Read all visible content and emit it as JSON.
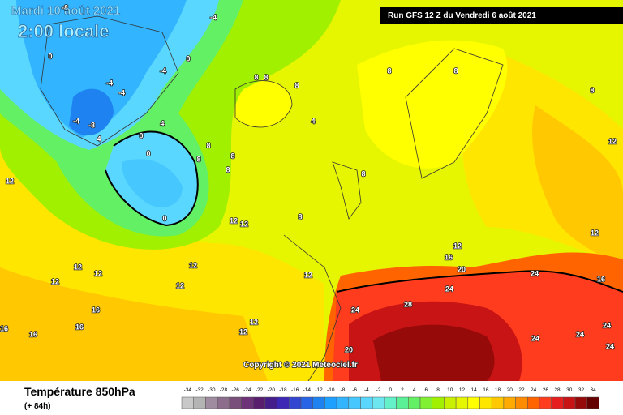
{
  "header": {
    "date": "Mardi 10 août 2021",
    "local_time": "2:00 locale",
    "run": "Run GFS 12 Z du Vendredi 6 août 2021"
  },
  "map": {
    "contour_labels": [
      -8,
      -4,
      0,
      -4,
      -4,
      -4,
      -8,
      -4,
      0,
      0,
      0,
      0,
      4,
      4,
      8,
      8,
      8,
      8,
      8,
      8,
      8,
      8,
      8,
      8,
      4,
      8,
      8,
      12,
      12,
      12,
      12,
      12,
      12,
      12,
      12,
      12,
      12,
      16,
      20,
      24,
      24,
      24,
      28,
      16,
      16,
      16,
      16,
      12,
      12,
      20,
      24,
      24,
      24,
      24,
      16,
      12,
      12
    ]
  },
  "footer": {
    "title": "Température 850hPa",
    "lead": "(+ 84h)",
    "copyright": "Copyright © 2021 Meteociel.fr"
  },
  "legend": {
    "values": [
      -34,
      -32,
      -30,
      -28,
      -26,
      -24,
      -22,
      -20,
      -18,
      -16,
      -14,
      -12,
      -10,
      -8,
      -6,
      -4,
      -2,
      0,
      2,
      4,
      6,
      8,
      10,
      12,
      14,
      16,
      18,
      20,
      22,
      24,
      26,
      28,
      30,
      32,
      34
    ],
    "colors": [
      "#c8c8c8",
      "#b4b4b4",
      "#a08ca0",
      "#8c6e8c",
      "#7a4e7a",
      "#6e3278",
      "#5a1e6e",
      "#461e8c",
      "#3c28b4",
      "#3246d2",
      "#2864e6",
      "#1e82f0",
      "#1ea0ff",
      "#32b4ff",
      "#46c8ff",
      "#5ad7ff",
      "#6ee6f0",
      "#64f0c8",
      "#5af096",
      "#64f064",
      "#82f032",
      "#a0f000",
      "#c8f000",
      "#e6f500",
      "#ffff00",
      "#ffe600",
      "#ffc800",
      "#ffaa00",
      "#ff8c00",
      "#ff6400",
      "#ff3c1e",
      "#e61e1e",
      "#c81414",
      "#960a0a",
      "#640000"
    ]
  }
}
